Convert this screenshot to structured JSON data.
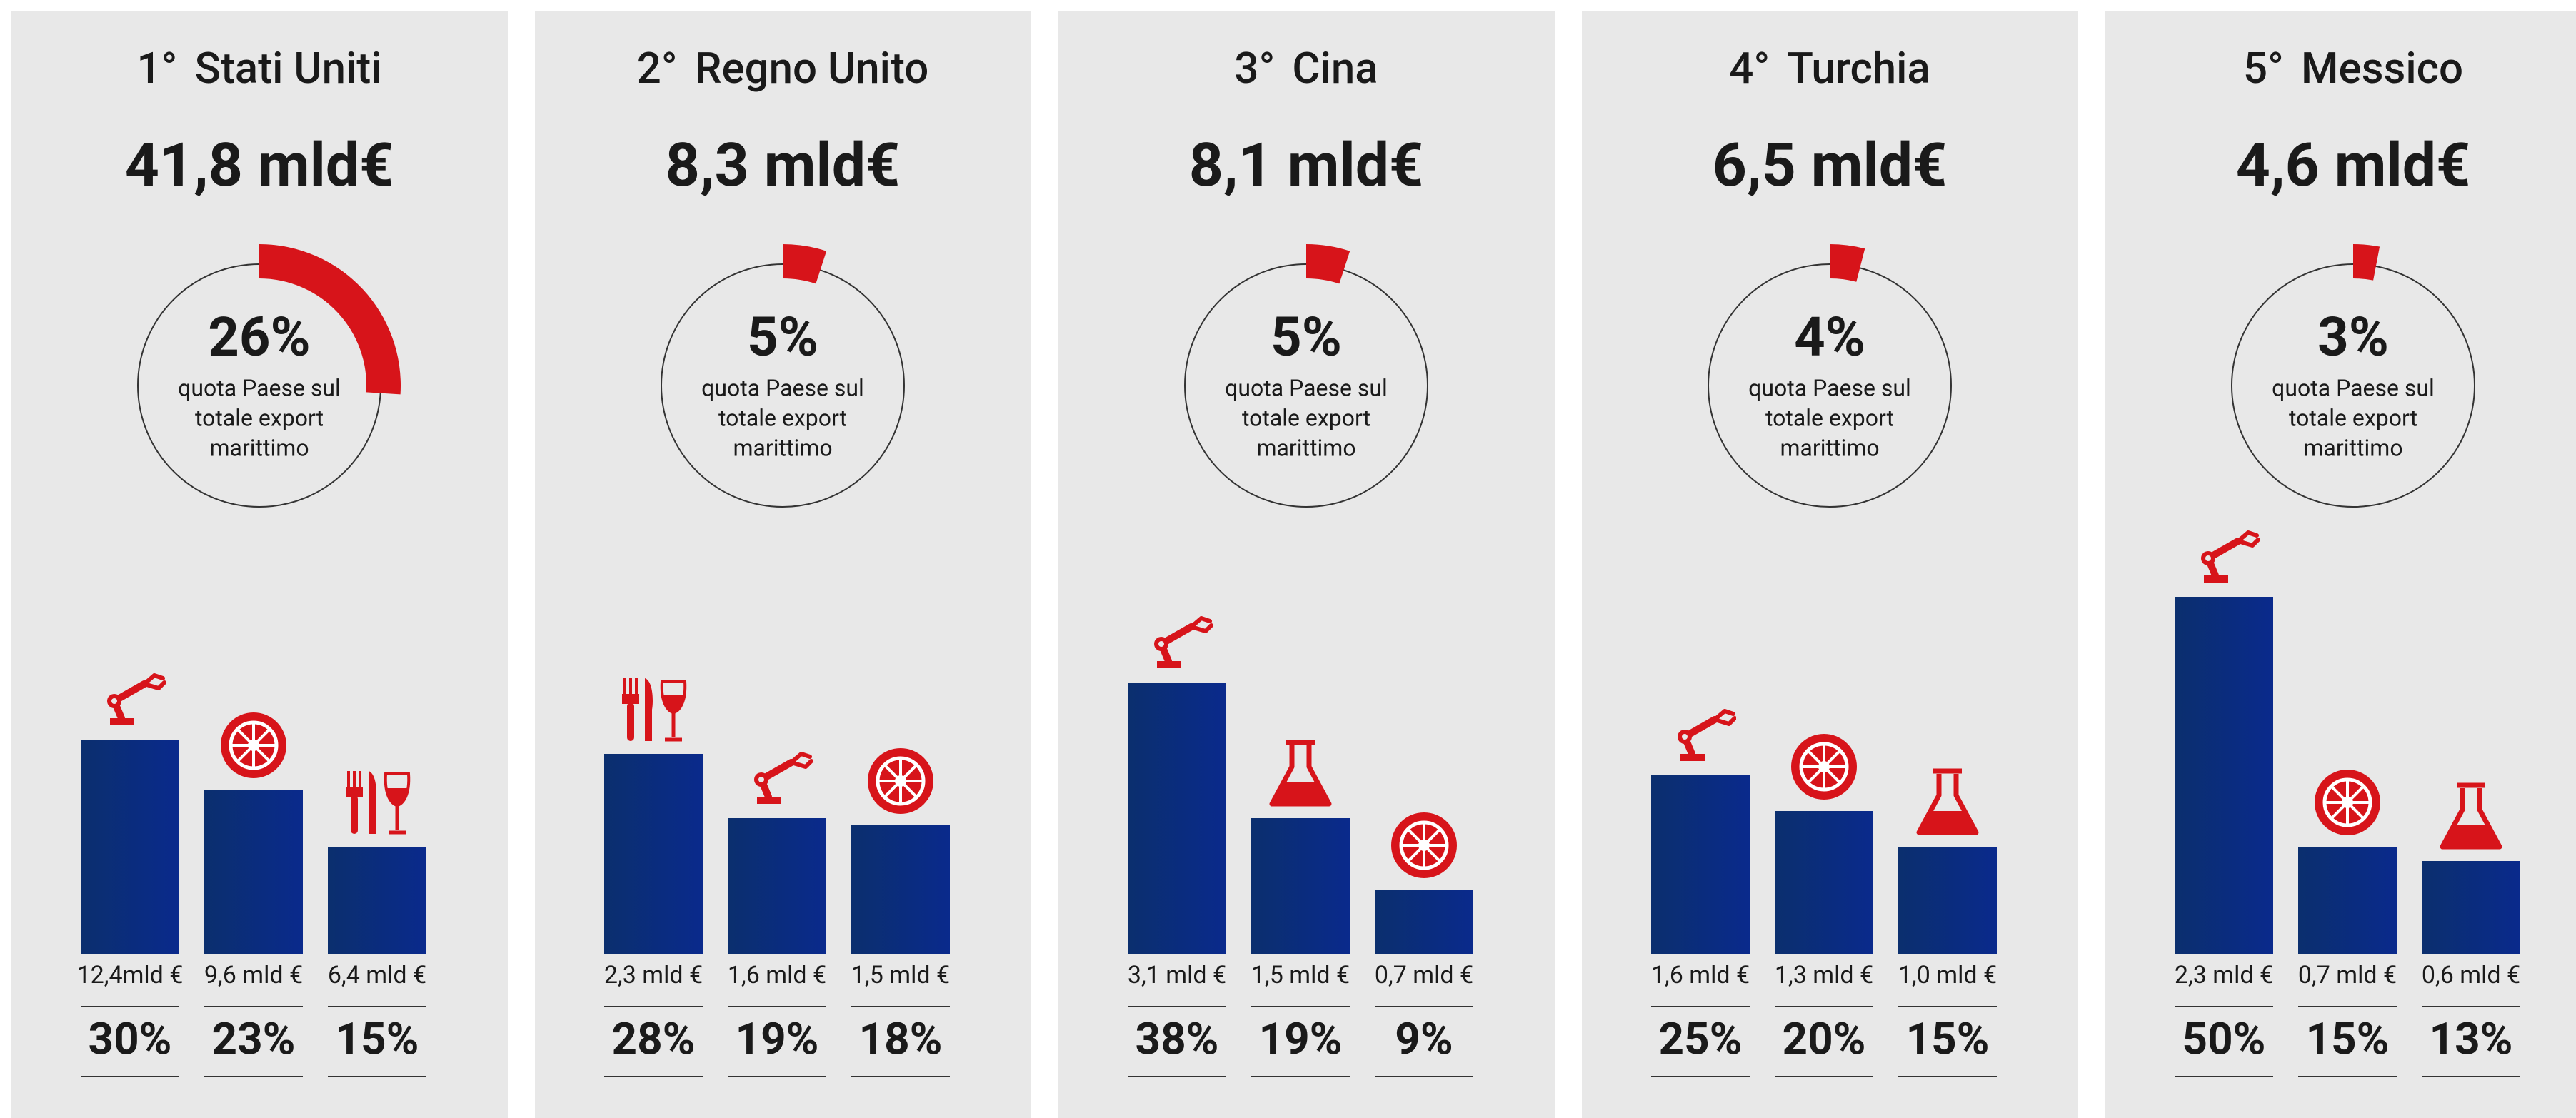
{
  "chart_data": [
    {
      "type": "bar",
      "rank": "1°",
      "country": "Stati Uniti",
      "total": "41,8 mld€",
      "share": 26,
      "share_label": "26%",
      "share_caption": [
        "quota Paese sul",
        "totale export",
        "marittimo"
      ],
      "categories": [
        null,
        null,
        null
      ],
      "icons": [
        "machinery",
        "tyre",
        "food"
      ],
      "values": [
        30,
        23,
        15
      ],
      "value_labels": [
        "30%",
        "23%",
        "15%"
      ],
      "amounts": [
        12.4,
        9.6,
        6.4
      ],
      "amount_labels": [
        "12,4mld €",
        "9,6 mld €",
        "6,4 mld €"
      ],
      "color": "#0b2f73",
      "accent": "#d7141a"
    },
    {
      "type": "bar",
      "rank": "2°",
      "country": "Regno Unito",
      "total": "8,3 mld€",
      "share": 5,
      "share_label": "5%",
      "share_caption": [
        "quota Paese sul",
        "totale export",
        "marittimo"
      ],
      "categories": [
        null,
        null,
        null
      ],
      "icons": [
        "food",
        "machinery",
        "tyre"
      ],
      "values": [
        28,
        19,
        18
      ],
      "value_labels": [
        "28%",
        "19%",
        "18%"
      ],
      "amounts": [
        2.3,
        1.6,
        1.5
      ],
      "amount_labels": [
        "2,3 mld €",
        "1,6 mld €",
        "1,5 mld €"
      ],
      "color": "#0b2f73",
      "accent": "#d7141a"
    },
    {
      "type": "bar",
      "rank": "3°",
      "country": "Cina",
      "total": "8,1 mld€",
      "share": 5,
      "share_label": "5%",
      "share_caption": [
        "quota Paese sul",
        "totale export",
        "marittimo"
      ],
      "categories": [
        null,
        null,
        null
      ],
      "icons": [
        "machinery",
        "chemistry",
        "tyre"
      ],
      "values": [
        38,
        19,
        9
      ],
      "value_labels": [
        "38%",
        "19%",
        "9%"
      ],
      "amounts": [
        3.1,
        1.5,
        0.7
      ],
      "amount_labels": [
        "3,1 mld €",
        "1,5 mld €",
        "0,7 mld €"
      ],
      "color": "#0b2f73",
      "accent": "#d7141a"
    },
    {
      "type": "bar",
      "rank": "4°",
      "country": "Turchia",
      "total": "6,5 mld€",
      "share": 4,
      "share_label": "4%",
      "share_caption": [
        "quota Paese sul",
        "totale export",
        "marittimo"
      ],
      "categories": [
        null,
        null,
        null
      ],
      "icons": [
        "machinery",
        "tyre",
        "chemistry"
      ],
      "values": [
        25,
        20,
        15
      ],
      "value_labels": [
        "25%",
        "20%",
        "15%"
      ],
      "amounts": [
        1.6,
        1.3,
        1.0
      ],
      "amount_labels": [
        "1,6 mld €",
        "1,3 mld €",
        "1,0 mld €"
      ],
      "color": "#0b2f73",
      "accent": "#d7141a"
    },
    {
      "type": "bar",
      "rank": "5°",
      "country": "Messico",
      "total": "4,6 mld€",
      "share": 3,
      "share_label": "3%",
      "share_caption": [
        "quota Paese sul",
        "totale export",
        "marittimo"
      ],
      "categories": [
        null,
        null,
        null
      ],
      "icons": [
        "machinery",
        "tyre",
        "chemistry"
      ],
      "values": [
        50,
        15,
        13
      ],
      "value_labels": [
        "50%",
        "15%",
        "13%"
      ],
      "amounts": [
        2.3,
        0.7,
        0.6
      ],
      "amount_labels": [
        "2,3 mld €",
        "0,7 mld €",
        "0,6 mld €"
      ],
      "color": "#0b2f73",
      "accent": "#d7141a"
    }
  ]
}
